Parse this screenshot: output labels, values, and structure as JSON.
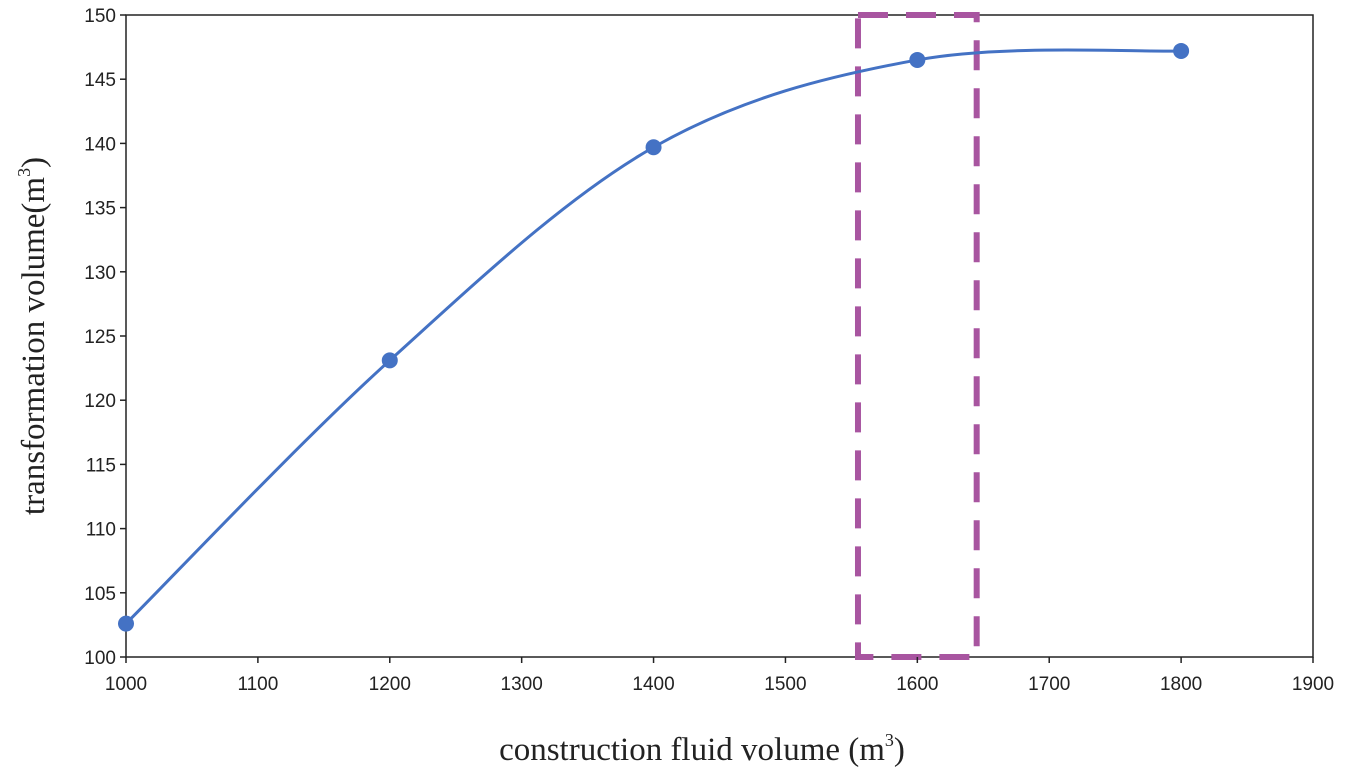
{
  "chart_data": {
    "type": "line",
    "smooth": true,
    "title": "",
    "xlabel": "construction fluid volume (m",
    "xlabel_sup": "3",
    "xlabel_close": ")",
    "ylabel": "transformation volume(m",
    "ylabel_sup": "3",
    "ylabel_close": ")",
    "xlim": [
      1000,
      1900
    ],
    "ylim": [
      100,
      150
    ],
    "x_ticks": [
      1000,
      1100,
      1200,
      1300,
      1400,
      1500,
      1600,
      1700,
      1800,
      1900
    ],
    "y_ticks": [
      100,
      105,
      110,
      115,
      120,
      125,
      130,
      135,
      140,
      145,
      150
    ],
    "grid": false,
    "legend": "none",
    "series": [
      {
        "x": [
          1000,
          1200,
          1400,
          1600,
          1800
        ],
        "y": [
          102.6,
          123.1,
          139.7,
          146.5,
          147.2
        ],
        "color": "#4472c4"
      }
    ],
    "highlight_region": {
      "x_range": [
        1555,
        1645
      ],
      "y_range": [
        100,
        150
      ],
      "color": "#a855a0",
      "style": "dashed"
    }
  }
}
